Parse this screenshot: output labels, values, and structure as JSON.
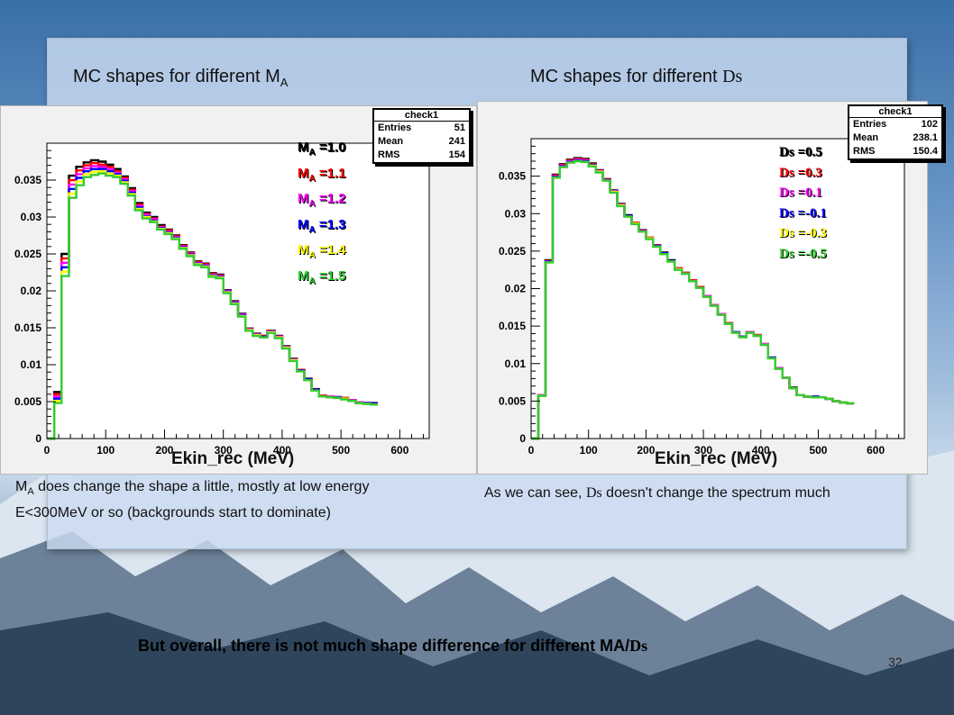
{
  "slide": {
    "left_title": "MC shapes for different M",
    "left_title_sub": "A",
    "right_title": "MC shapes for different ",
    "right_title_ds": "Ds",
    "left_caption_pre": "M",
    "left_caption_sub": "A",
    "left_caption_text": " does change the shape a little, mostly at low energy E<300MeV or so (backgrounds start to dominate)",
    "right_caption_pre": "As we can see, ",
    "right_caption_ds": "Ds",
    "right_caption_text": " doesn't change the spectrum much",
    "bottom_text": "But overall, there is not much shape difference for different MA/",
    "bottom_ds": "Ds",
    "page_number": "32"
  },
  "chart_data": [
    {
      "type": "line",
      "style": "step-histogram",
      "xlabel": "Ekin_rec (MeV)",
      "xlim": [
        0,
        650
      ],
      "ylim": [
        0,
        0.04
      ],
      "x_ticks": [
        "0",
        "100",
        "200",
        "300",
        "400",
        "500",
        "600"
      ],
      "y_ticks": [
        "0",
        "0.005",
        "0.01",
        "0.015",
        "0.02",
        "0.025",
        "0.03",
        "0.035"
      ],
      "stats": {
        "title": "check1",
        "rows": [
          [
            "Entries",
            "51"
          ],
          [
            "Mean",
            "241"
          ],
          [
            "RMS",
            "154"
          ]
        ]
      },
      "bin_width": 12.5,
      "series": [
        {
          "name": "M_A =1.0",
          "label_main": "M",
          "label_sub": "A",
          "label_val": " =1.0",
          "color": "#000000",
          "values": [
            0,
            0.0063,
            0.025,
            0.0356,
            0.0368,
            0.0374,
            0.0377,
            0.0375,
            0.0371,
            0.0365,
            0.0355,
            0.0339,
            0.0319,
            0.0306,
            0.03,
            0.0289,
            0.0283,
            0.0275,
            0.0262,
            0.0252,
            0.024,
            0.0237,
            0.0224,
            0.0222,
            0.0201,
            0.0186,
            0.0169,
            0.0149,
            0.0142,
            0.0139,
            0.0146,
            0.0139,
            0.0125,
            0.0108,
            0.0093,
            0.0081,
            0.0067,
            0.0058,
            0.0057,
            0.0056,
            0.0055,
            0.0052,
            0.0049,
            0.0048,
            0.0048
          ]
        },
        {
          "name": "M_A =1.1",
          "label_main": "M",
          "label_sub": "A",
          "label_val": " =1.1",
          "color": "#ff0000",
          "values": [
            0,
            0.006,
            0.0244,
            0.035,
            0.0363,
            0.037,
            0.0373,
            0.0371,
            0.0368,
            0.0362,
            0.0353,
            0.0337,
            0.0317,
            0.0304,
            0.0298,
            0.0287,
            0.0282,
            0.0274,
            0.0261,
            0.0251,
            0.0239,
            0.0236,
            0.0223,
            0.0221,
            0.02,
            0.0185,
            0.0168,
            0.0148,
            0.0141,
            0.0139,
            0.0145,
            0.0138,
            0.0124,
            0.0107,
            0.0093,
            0.008,
            0.0066,
            0.0058,
            0.0057,
            0.0056,
            0.0055,
            0.0052,
            0.0049,
            0.0048,
            0.0047
          ]
        },
        {
          "name": "M_A =1.2",
          "label_main": "M",
          "label_sub": "A",
          "label_val": " =1.2",
          "color": "#ff00ff",
          "values": [
            0,
            0.0057,
            0.0238,
            0.0344,
            0.0358,
            0.0366,
            0.0369,
            0.0368,
            0.0365,
            0.036,
            0.0351,
            0.0335,
            0.0315,
            0.0303,
            0.0297,
            0.0286,
            0.028,
            0.0273,
            0.026,
            0.025,
            0.0238,
            0.0235,
            0.0222,
            0.022,
            0.02,
            0.0185,
            0.0168,
            0.0148,
            0.0141,
            0.0138,
            0.0145,
            0.0138,
            0.0124,
            0.0107,
            0.0092,
            0.008,
            0.0066,
            0.0057,
            0.0057,
            0.0056,
            0.0054,
            0.0052,
            0.0049,
            0.0048,
            0.0047
          ]
        },
        {
          "name": "M_A =1.3",
          "label_main": "M",
          "label_sub": "A",
          "label_val": " =1.3",
          "color": "#0000ff",
          "values": [
            0,
            0.0054,
            0.0232,
            0.0338,
            0.0353,
            0.0362,
            0.0365,
            0.0365,
            0.0362,
            0.0358,
            0.0349,
            0.0333,
            0.0313,
            0.0301,
            0.0295,
            0.0285,
            0.0279,
            0.0272,
            0.0259,
            0.0249,
            0.0237,
            0.0234,
            0.0221,
            0.0219,
            0.0199,
            0.0184,
            0.0167,
            0.0147,
            0.014,
            0.0138,
            0.0144,
            0.0137,
            0.0123,
            0.0106,
            0.0092,
            0.008,
            0.0066,
            0.0057,
            0.0056,
            0.0056,
            0.0054,
            0.0051,
            0.0048,
            0.0048,
            0.0047
          ]
        },
        {
          "name": "M_A =1.4",
          "label_main": "M",
          "label_sub": "A",
          "label_val": " =1.4",
          "color": "#ffff00",
          "values": [
            0,
            0.0051,
            0.0226,
            0.0332,
            0.0348,
            0.0358,
            0.0361,
            0.0362,
            0.0359,
            0.0356,
            0.0347,
            0.0331,
            0.0311,
            0.03,
            0.0294,
            0.0284,
            0.0278,
            0.0271,
            0.0258,
            0.0248,
            0.0236,
            0.0233,
            0.022,
            0.0218,
            0.0198,
            0.0183,
            0.0166,
            0.0147,
            0.014,
            0.0137,
            0.0144,
            0.0137,
            0.0123,
            0.0106,
            0.0091,
            0.0079,
            0.0065,
            0.0057,
            0.0056,
            0.0055,
            0.0054,
            0.0051,
            0.0048,
            0.0047,
            0.0046
          ]
        },
        {
          "name": "M_A =1.5",
          "label_main": "M",
          "label_sub": "A",
          "label_val": " =1.5",
          "color": "#33cc33",
          "values": [
            0,
            0.0048,
            0.022,
            0.0326,
            0.0343,
            0.0354,
            0.0357,
            0.0359,
            0.0356,
            0.0354,
            0.0345,
            0.0329,
            0.0309,
            0.0298,
            0.0293,
            0.0283,
            0.0277,
            0.027,
            0.0257,
            0.0247,
            0.0235,
            0.0232,
            0.0219,
            0.0217,
            0.0197,
            0.0182,
            0.0165,
            0.0146,
            0.0139,
            0.0137,
            0.0143,
            0.0136,
            0.0122,
            0.0105,
            0.0091,
            0.0079,
            0.0065,
            0.0057,
            0.0056,
            0.0055,
            0.0053,
            0.0051,
            0.0048,
            0.0047,
            0.0046
          ]
        }
      ]
    },
    {
      "type": "line",
      "style": "step-histogram",
      "xlabel": "Ekin_rec (MeV)",
      "xlim": [
        0,
        650
      ],
      "ylim": [
        0,
        0.04
      ],
      "x_ticks": [
        "0",
        "100",
        "200",
        "300",
        "400",
        "500",
        "600"
      ],
      "y_ticks": [
        "0",
        "0.005",
        "0.01",
        "0.015",
        "0.02",
        "0.025",
        "0.03",
        "0.035"
      ],
      "stats": {
        "title": "check1",
        "rows": [
          [
            "Entries",
            "102"
          ],
          [
            "Mean",
            "238.1"
          ],
          [
            "RMS",
            "150.4"
          ]
        ]
      },
      "bin_width": 12.5,
      "series": [
        {
          "name": "Ds =0.5",
          "label_main": "Ds",
          "label_sub": "",
          "label_val": " =0.5",
          "color": "#000000",
          "values": [
            0,
            0.0058,
            0.0238,
            0.0352,
            0.0366,
            0.0372,
            0.0374,
            0.0373,
            0.0367,
            0.0358,
            0.0346,
            0.0331,
            0.0313,
            0.0298,
            0.0288,
            0.0278,
            0.0268,
            0.0258,
            0.0248,
            0.0238,
            0.0227,
            0.0221,
            0.0211,
            0.0202,
            0.019,
            0.0178,
            0.0166,
            0.0154,
            0.0142,
            0.0136,
            0.0142,
            0.0138,
            0.0126,
            0.0108,
            0.0094,
            0.0081,
            0.0068,
            0.0058,
            0.0056,
            0.0056,
            0.0055,
            0.0053,
            0.005,
            0.0048,
            0.0047
          ]
        },
        {
          "name": "Ds =0.3",
          "label_main": "Ds",
          "label_sub": "",
          "label_val": " =0.3",
          "color": "#ff0000",
          "values": [
            0,
            0.0058,
            0.0237,
            0.0351,
            0.0365,
            0.0371,
            0.0373,
            0.0372,
            0.0366,
            0.0357,
            0.0346,
            0.033,
            0.0312,
            0.0297,
            0.0288,
            0.0277,
            0.0268,
            0.0258,
            0.0247,
            0.0237,
            0.0227,
            0.0221,
            0.0211,
            0.0202,
            0.019,
            0.0178,
            0.0166,
            0.0154,
            0.0142,
            0.0136,
            0.0142,
            0.0138,
            0.0126,
            0.0108,
            0.0094,
            0.0081,
            0.0067,
            0.0058,
            0.0056,
            0.0056,
            0.0055,
            0.0053,
            0.005,
            0.0048,
            0.0047
          ]
        },
        {
          "name": "Ds =0.1",
          "label_main": "Ds",
          "label_sub": "",
          "label_val": " =0.1",
          "color": "#ff00ff",
          "values": [
            0,
            0.0058,
            0.0236,
            0.035,
            0.0364,
            0.037,
            0.0372,
            0.0371,
            0.0365,
            0.0357,
            0.0345,
            0.033,
            0.0312,
            0.0297,
            0.0287,
            0.0277,
            0.0267,
            0.0257,
            0.0247,
            0.0237,
            0.0226,
            0.022,
            0.021,
            0.0201,
            0.019,
            0.0178,
            0.0166,
            0.0153,
            0.0142,
            0.0136,
            0.0142,
            0.0137,
            0.0126,
            0.0108,
            0.0094,
            0.0081,
            0.0067,
            0.0058,
            0.0056,
            0.0056,
            0.0055,
            0.0053,
            0.005,
            0.0048,
            0.0047
          ]
        },
        {
          "name": "Ds =-0.1",
          "label_main": "Ds",
          "label_sub": "",
          "label_val": " =-0.1",
          "color": "#0000ff",
          "values": [
            0,
            0.0057,
            0.0236,
            0.0349,
            0.0363,
            0.0369,
            0.0371,
            0.037,
            0.0365,
            0.0356,
            0.0345,
            0.0329,
            0.0311,
            0.0297,
            0.0287,
            0.0276,
            0.0267,
            0.0257,
            0.0247,
            0.0237,
            0.0226,
            0.022,
            0.021,
            0.0201,
            0.0189,
            0.0177,
            0.0165,
            0.0153,
            0.0142,
            0.0136,
            0.0141,
            0.0137,
            0.0125,
            0.0108,
            0.0093,
            0.0081,
            0.0067,
            0.0058,
            0.0056,
            0.0056,
            0.0055,
            0.0053,
            0.005,
            0.0048,
            0.0047
          ]
        },
        {
          "name": "Ds =-0.3",
          "label_main": "Ds",
          "label_sub": "",
          "label_val": " =-0.3",
          "color": "#ffff00",
          "values": [
            0,
            0.0057,
            0.0235,
            0.0348,
            0.0362,
            0.0368,
            0.037,
            0.0369,
            0.0364,
            0.0356,
            0.0344,
            0.0329,
            0.0311,
            0.0296,
            0.0287,
            0.0276,
            0.0267,
            0.0256,
            0.0246,
            0.0236,
            0.0226,
            0.022,
            0.021,
            0.0201,
            0.0189,
            0.0177,
            0.0165,
            0.0153,
            0.0141,
            0.0135,
            0.0141,
            0.0137,
            0.0125,
            0.0107,
            0.0093,
            0.0081,
            0.0067,
            0.0058,
            0.0056,
            0.0055,
            0.0055,
            0.0053,
            0.005,
            0.0048,
            0.0047
          ]
        },
        {
          "name": "Ds =-0.5",
          "label_main": "Ds",
          "label_sub": "",
          "label_val": " =-0.5",
          "color": "#33cc33",
          "values": [
            0,
            0.0057,
            0.0235,
            0.0348,
            0.0362,
            0.0368,
            0.037,
            0.0369,
            0.0363,
            0.0355,
            0.0344,
            0.0328,
            0.031,
            0.0296,
            0.0286,
            0.0276,
            0.0266,
            0.0256,
            0.0246,
            0.0236,
            0.0225,
            0.022,
            0.021,
            0.0201,
            0.0189,
            0.0177,
            0.0165,
            0.0153,
            0.0141,
            0.0135,
            0.0141,
            0.0137,
            0.0125,
            0.0107,
            0.0093,
            0.0081,
            0.0067,
            0.0058,
            0.0056,
            0.0055,
            0.0055,
            0.0053,
            0.005,
            0.0048,
            0.0047
          ]
        }
      ]
    }
  ]
}
